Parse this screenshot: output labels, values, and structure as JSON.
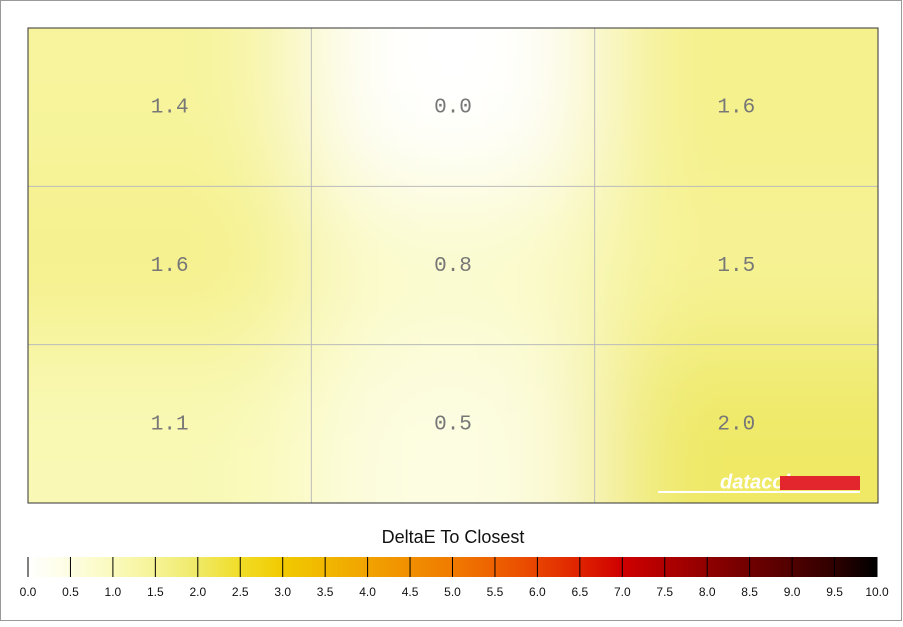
{
  "chart_data": {
    "type": "heatmap",
    "rows": 3,
    "cols": 3,
    "values": [
      [
        1.4,
        0.0,
        1.6
      ],
      [
        1.6,
        0.8,
        1.5
      ],
      [
        1.1,
        0.5,
        2.0
      ]
    ],
    "value_labels": [
      [
        "1.4",
        "0.0",
        "1.6"
      ],
      [
        "1.6",
        "0.8",
        "1.5"
      ],
      [
        "1.1",
        "0.5",
        "2.0"
      ]
    ],
    "grid": true,
    "watermark": "datacolor",
    "colorbar": {
      "title": "DeltaE To Closest",
      "lim": [
        0,
        10
      ],
      "ticks": [
        {
          "value": 0,
          "label": "0.0"
        },
        0.5,
        {
          "value": 1,
          "label": "1.0"
        },
        1.5,
        {
          "value": 2,
          "label": "2.0"
        },
        2.5,
        {
          "value": 3,
          "label": "3.0"
        },
        3.5,
        {
          "value": 4,
          "label": "4.0"
        },
        4.5,
        {
          "value": 5,
          "label": "5.0"
        },
        5.5,
        {
          "value": 6,
          "label": "6.0"
        },
        6.5,
        {
          "value": 7,
          "label": "7.0"
        },
        7.5,
        {
          "value": 8,
          "label": "8.0"
        },
        8.5,
        {
          "value": 9,
          "label": "9.0"
        },
        9.5,
        {
          "value": 10,
          "label": "10.0"
        }
      ],
      "colors": [
        "#ffffff",
        "#fdfde2",
        "#fafabd",
        "#f6f395",
        "#efe966",
        "#f1dd27",
        "#f1ca00",
        "#f1b700",
        "#f1a300",
        "#f18f00",
        "#f07a00",
        "#ee6100",
        "#e84300",
        "#df2200",
        "#cf0000",
        "#b00000",
        "#900000",
        "#700000",
        "#500000",
        "#2e0000",
        "#000000"
      ]
    }
  }
}
